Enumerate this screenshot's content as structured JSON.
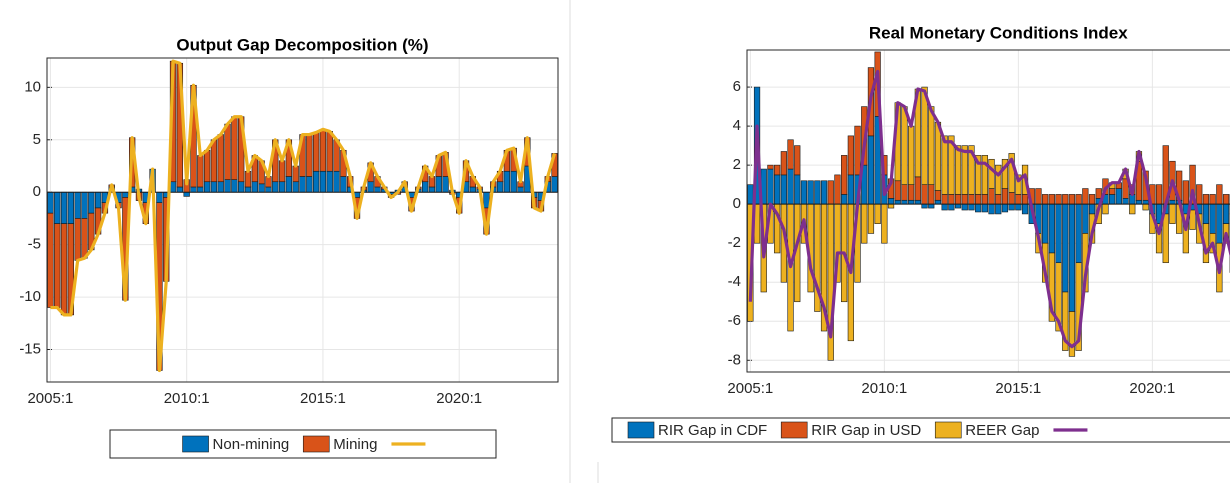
{
  "chart_data": [
    {
      "type": "bar",
      "stacked": true,
      "title": "Output Gap Decomposition (%)",
      "categories": [
        "2005:1",
        null,
        null,
        null,
        null,
        null,
        null,
        null,
        null,
        null,
        null,
        null,
        null,
        null,
        null,
        null,
        null,
        null,
        null,
        null,
        "2010:1",
        null,
        null,
        null,
        null,
        null,
        null,
        null,
        null,
        null,
        null,
        null,
        null,
        null,
        null,
        null,
        null,
        null,
        null,
        null,
        "2015:1",
        null,
        null,
        null,
        null,
        null,
        null,
        null,
        null,
        null,
        null,
        null,
        null,
        null,
        null,
        null,
        null,
        null,
        null,
        null,
        "2020:1",
        null,
        null,
        null,
        null,
        null,
        null,
        null,
        null,
        null,
        null,
        null,
        null,
        null,
        null
      ],
      "series": [
        {
          "name": "Non-mining",
          "color": "#0072BD",
          "values": [
            -2,
            -3,
            -3,
            -3,
            -2.5,
            -2.5,
            -2,
            -1.5,
            -1,
            0.5,
            -1,
            -0.5,
            0.5,
            0.3,
            -1,
            2.2,
            -1,
            -0.5,
            1,
            0.5,
            -0.4,
            0.5,
            0.5,
            1,
            1,
            1,
            1.2,
            1.2,
            1,
            0.5,
            1,
            0.8,
            0.5,
            1,
            1,
            1.5,
            1,
            1.5,
            1.5,
            2,
            2,
            2,
            2,
            1.5,
            0.5,
            -0.5,
            0.2,
            1,
            0.5,
            0.3,
            -0.2,
            0.2,
            0.5,
            -0.5,
            0.3,
            1,
            0.5,
            1.5,
            1.5,
            0.2,
            -0.5,
            1,
            0.5,
            0.3,
            -1.5,
            0.5,
            1,
            2,
            2,
            0.5,
            2.5,
            -0.5,
            -0.8,
            1,
            1.5
          ]
        },
        {
          "name": "Mining",
          "color": "#D95319",
          "values": [
            -9,
            -8,
            -8.7,
            -8.7,
            -4,
            -3.8,
            -3.5,
            -2.5,
            -1,
            0.2,
            -0.5,
            -9.8,
            4.7,
            -0.8,
            -2,
            0,
            -16,
            -8,
            11.5,
            11.8,
            1.2,
            9.7,
            3,
            3,
            4,
            4.5,
            5.3,
            6,
            6.2,
            1.5,
            2.5,
            2.2,
            1,
            4,
            2,
            3.5,
            1.5,
            4,
            4,
            3.7,
            4,
            3.8,
            3,
            2.5,
            1,
            -2,
            0.3,
            1.8,
            1,
            0.2,
            -0.3,
            -0.2,
            0.5,
            -1.3,
            0.2,
            1.5,
            1,
            2,
            2.3,
            -0.2,
            -1.5,
            2,
            1,
            0.2,
            -2.5,
            0.5,
            1,
            2,
            2.2,
            0.5,
            2.7,
            -1,
            -1,
            0.5,
            2.2
          ]
        },
        {
          "type": "line",
          "color": "#EDB120",
          "values": [
            -11,
            -11,
            -11.7,
            -11.7,
            -6.5,
            -6.3,
            -5.5,
            -4,
            -2,
            0.7,
            -1.5,
            -10.3,
            5.2,
            -0.5,
            -3,
            2.2,
            -17,
            -8.5,
            12.5,
            12.3,
            0.8,
            10.2,
            3.5,
            4,
            5,
            5.5,
            6.5,
            7.2,
            7.2,
            2,
            3.5,
            3,
            1.5,
            5,
            3,
            5,
            2.5,
            5.5,
            5.5,
            5.7,
            6,
            5.8,
            5,
            4,
            1.5,
            -2.5,
            0.5,
            2.8,
            1.5,
            0.5,
            -0.5,
            0,
            1,
            -1.8,
            0.5,
            2.5,
            1.5,
            3.5,
            3.8,
            0,
            -2,
            3,
            1.5,
            0.5,
            -4,
            1,
            2,
            4,
            4.2,
            1,
            5.2,
            -1.5,
            -1.8,
            1.5,
            3.7
          ]
        }
      ],
      "ylim": [
        -18.1,
        12.8
      ],
      "yticks": [
        -15,
        -10,
        -5,
        0,
        5,
        10
      ],
      "grid": true,
      "legend": "bottom"
    },
    {
      "type": "bar",
      "stacked": true,
      "title": "Real Monetary Conditions Index",
      "categories": [
        "2005:1",
        null,
        null,
        null,
        null,
        null,
        null,
        null,
        null,
        null,
        null,
        null,
        null,
        null,
        null,
        null,
        null,
        null,
        null,
        null,
        "2010:1",
        null,
        null,
        null,
        null,
        null,
        null,
        null,
        null,
        null,
        null,
        null,
        null,
        null,
        null,
        null,
        null,
        null,
        null,
        null,
        "2015:1",
        null,
        null,
        null,
        null,
        null,
        null,
        null,
        null,
        null,
        null,
        null,
        null,
        null,
        null,
        null,
        null,
        null,
        null,
        null,
        "2020:1",
        null,
        null,
        null,
        null,
        null,
        null,
        null,
        null,
        null,
        null,
        null,
        null,
        null,
        null
      ],
      "series": [
        {
          "name": "RIR Gap in CDF",
          "color": "#0072BD",
          "values": [
            1,
            6,
            1.8,
            1.8,
            1.5,
            1.5,
            1.8,
            1.5,
            1.2,
            1.2,
            1.2,
            1.2,
            0,
            0,
            0.5,
            1.5,
            1.5,
            2,
            3.5,
            4.5,
            1.5,
            0.3,
            0.2,
            0.2,
            0.2,
            0.2,
            -0.2,
            -0.2,
            0.2,
            -0.3,
            -0.3,
            -0.2,
            -0.3,
            -0.3,
            -0.4,
            -0.4,
            -0.5,
            -0.5,
            -0.4,
            -0.3,
            -0.3,
            -0.5,
            -1,
            -1.5,
            -2,
            -2.5,
            -3,
            -4.5,
            -5.5,
            -3,
            -1.5,
            -0.5,
            0.3,
            0.5,
            0.5,
            0.8,
            0.3,
            0.5,
            0.2,
            0.2,
            -0.5,
            -1,
            -0.5,
            0.2,
            0.2,
            -0.5,
            -0.3,
            -0.5,
            -1,
            -1.5,
            -2,
            -1,
            -0.5,
            -1,
            -1.5
          ]
        },
        {
          "name": "RIR Gap in USD",
          "color": "#D95319",
          "values": [
            0,
            0,
            0,
            0.2,
            0.5,
            1.2,
            1.5,
            1.5,
            0,
            0,
            0,
            0,
            1.2,
            1.5,
            2,
            2,
            2.5,
            3,
            3.5,
            3.3,
            1,
            1,
            1,
            0.8,
            0.8,
            1.2,
            1,
            1,
            0.5,
            0.5,
            0.5,
            0.5,
            0.5,
            0.5,
            0.5,
            0.5,
            0.8,
            0.5,
            0.8,
            0.6,
            0.5,
            0.5,
            0.8,
            0.8,
            0.5,
            0.5,
            0.5,
            0.5,
            0.5,
            0.5,
            0.8,
            0.5,
            0.5,
            0.8,
            0.3,
            0.3,
            1,
            0.5,
            2,
            1.5,
            1,
            1,
            3,
            2,
            1.5,
            1.2,
            2,
            1,
            0.5,
            0.5,
            1,
            0.5,
            0.5,
            0.8,
            0.5
          ]
        },
        {
          "name": "REER Gap",
          "color": "#EDB120",
          "values": [
            -6,
            -2,
            -4.5,
            -2,
            -2.5,
            -4,
            -6.5,
            -5,
            -2,
            -4.5,
            -5.5,
            -6.5,
            -8,
            -4,
            -5,
            -7,
            -4,
            -2,
            -1.5,
            -1,
            -2,
            -0.2,
            4,
            4,
            3,
            4.5,
            5,
            4,
            3.5,
            3,
            3,
            2.5,
            2.5,
            2.5,
            2,
            2,
            1.5,
            1.5,
            1.5,
            2,
            1,
            1.5,
            0,
            -1,
            -2,
            -3.5,
            -3.5,
            -3,
            -2.3,
            -4.5,
            -3,
            -1.5,
            -1,
            -0.5,
            0.3,
            0,
            0.5,
            -0.5,
            0.5,
            -0.3,
            -1,
            -1.5,
            -2.5,
            -1,
            -1.5,
            -2,
            -1,
            -1.5,
            -2,
            -1,
            -2.5,
            -1,
            -3,
            -2,
            -3
          ]
        },
        {
          "type": "line",
          "color": "#7E2F8E",
          "values": [
            -5,
            4,
            -2.7,
            0,
            -0.5,
            -1.3,
            -3.2,
            -2,
            -0.8,
            -3.3,
            -4.3,
            -5.3,
            -6.8,
            -2.5,
            -2.5,
            -3.5,
            0,
            3,
            5.5,
            6.8,
            0.5,
            1.1,
            5.2,
            5,
            4,
            5.9,
            5.8,
            4.8,
            4.2,
            3.2,
            3.2,
            2.8,
            2.7,
            2.7,
            2.1,
            2.1,
            1.8,
            1.5,
            1.9,
            2.3,
            1.2,
            1.5,
            -0.2,
            -1.7,
            -3.5,
            -5.5,
            -6,
            -7,
            -7.3,
            -7,
            -3.7,
            -1.5,
            -0.2,
            0.8,
            1.1,
            1.1,
            1.8,
            0.5,
            2.7,
            1.4,
            -0.5,
            -1.5,
            0,
            1.2,
            0.2,
            -1.3,
            0.7,
            -1,
            -2.5,
            -2,
            -3.5,
            -1.5,
            -3,
            -2.2,
            -4
          ]
        }
      ],
      "ylim": [
        -8.6,
        7.9
      ],
      "yticks": [
        -8,
        -6,
        -4,
        -2,
        0,
        2,
        4,
        6
      ],
      "grid": true,
      "legend": "bottom"
    }
  ]
}
